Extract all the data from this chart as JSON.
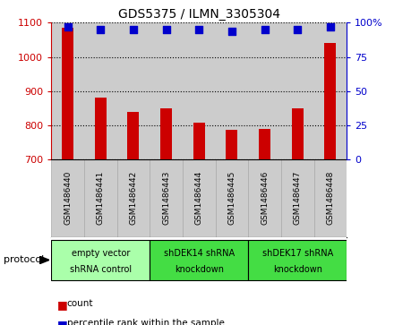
{
  "title": "GDS5375 / ILMN_3305304",
  "samples": [
    "GSM1486440",
    "GSM1486441",
    "GSM1486442",
    "GSM1486443",
    "GSM1486444",
    "GSM1486445",
    "GSM1486446",
    "GSM1486447",
    "GSM1486448"
  ],
  "counts": [
    1085,
    882,
    838,
    848,
    807,
    785,
    790,
    848,
    1040
  ],
  "percentiles": [
    97,
    95,
    95,
    95,
    95,
    94,
    95,
    95,
    97
  ],
  "ylim_left": [
    700,
    1100
  ],
  "ylim_right": [
    0,
    100
  ],
  "yticks_left": [
    700,
    800,
    900,
    1000,
    1100
  ],
  "yticks_right": [
    0,
    25,
    50,
    75,
    100
  ],
  "bar_color": "#cc0000",
  "dot_color": "#0000cc",
  "groups": [
    {
      "label": "empty vector\nshRNA control",
      "start": 0,
      "end": 3,
      "color": "#aaffaa"
    },
    {
      "label": "shDEK14 shRNA\nknockdown",
      "start": 3,
      "end": 6,
      "color": "#44dd44"
    },
    {
      "label": "shDEK17 shRNA\nknockdown",
      "start": 6,
      "end": 9,
      "color": "#44dd44"
    }
  ],
  "legend_items": [
    {
      "label": "count",
      "color": "#cc0000"
    },
    {
      "label": "percentile rank within the sample",
      "color": "#0000cc"
    }
  ],
  "protocol_label": "protocol",
  "bar_width": 0.35,
  "dot_size": 28,
  "axis_color_left": "#cc0000",
  "axis_color_right": "#0000cc",
  "background_color": "#ffffff",
  "tick_area_color": "#cccccc",
  "col_sep_color": "#aaaaaa"
}
